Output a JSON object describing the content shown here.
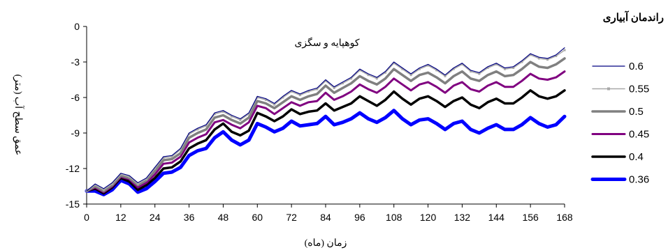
{
  "chart_data": {
    "type": "line",
    "title": "",
    "annotation": "کوهپایه و سگزی",
    "xlabel": "زمان (ماه)",
    "ylabel": "عمق سطح آب (متر)",
    "xlim": [
      0,
      168
    ],
    "ylim": [
      -15,
      0
    ],
    "x_ticks": [
      0,
      12,
      24,
      36,
      48,
      60,
      72,
      84,
      96,
      108,
      120,
      132,
      144,
      156,
      168
    ],
    "y_ticks": [
      0,
      -3,
      -6,
      -9,
      -12,
      -15
    ],
    "grid": false,
    "legend": {
      "title": "راندمان آبیاری",
      "position": "right"
    },
    "x": [
      0,
      3,
      6,
      9,
      12,
      15,
      18,
      21,
      24,
      27,
      30,
      33,
      36,
      39,
      42,
      45,
      48,
      51,
      54,
      57,
      60,
      63,
      66,
      69,
      72,
      75,
      78,
      81,
      84,
      87,
      90,
      93,
      96,
      99,
      102,
      105,
      108,
      111,
      114,
      117,
      120,
      123,
      126,
      129,
      132,
      135,
      138,
      141,
      144,
      147,
      150,
      153,
      156,
      159,
      162,
      165,
      168
    ],
    "series": [
      {
        "name": "0.6",
        "color": "#000080",
        "width": 1.2,
        "values": [
          -13.9,
          -13.3,
          -13.7,
          -13.2,
          -12.4,
          -12.6,
          -13.2,
          -12.8,
          -11.9,
          -11.0,
          -10.9,
          -10.3,
          -9.0,
          -8.6,
          -8.3,
          -7.3,
          -7.1,
          -7.5,
          -7.8,
          -7.3,
          -5.9,
          -6.1,
          -6.5,
          -5.9,
          -5.4,
          -5.7,
          -5.4,
          -5.2,
          -4.5,
          -5.1,
          -4.7,
          -4.3,
          -3.6,
          -4.0,
          -4.3,
          -3.8,
          -3.0,
          -3.5,
          -4.0,
          -3.5,
          -3.2,
          -3.6,
          -4.1,
          -3.5,
          -3.1,
          -3.7,
          -3.9,
          -3.4,
          -3.1,
          -3.5,
          -3.4,
          -2.9,
          -2.3,
          -2.6,
          -2.7,
          -2.4,
          -1.8
        ]
      },
      {
        "name": "0.55",
        "color": "#a8a8a8",
        "width": 1.5,
        "markers": true,
        "values": [
          -13.9,
          -13.4,
          -13.8,
          -13.3,
          -12.5,
          -12.7,
          -13.3,
          -12.9,
          -12.0,
          -11.1,
          -11.0,
          -10.4,
          -9.1,
          -8.7,
          -8.4,
          -7.4,
          -7.2,
          -7.6,
          -7.9,
          -7.4,
          -6.0,
          -6.2,
          -6.6,
          -6.0,
          -5.5,
          -5.8,
          -5.5,
          -5.3,
          -4.6,
          -5.2,
          -4.8,
          -4.4,
          -3.7,
          -4.1,
          -4.4,
          -3.9,
          -3.1,
          -3.6,
          -4.1,
          -3.6,
          -3.3,
          -3.7,
          -4.2,
          -3.6,
          -3.2,
          -3.8,
          -4.0,
          -3.5,
          -3.2,
          -3.6,
          -3.5,
          -3.0,
          -2.4,
          -2.7,
          -2.8,
          -2.5,
          -2.0
        ]
      },
      {
        "name": "0.5",
        "color": "#808080",
        "width": 3.5,
        "values": [
          -13.9,
          -13.5,
          -13.9,
          -13.4,
          -12.6,
          -12.8,
          -13.4,
          -13.0,
          -12.2,
          -11.3,
          -11.2,
          -10.7,
          -9.4,
          -9.0,
          -8.7,
          -7.7,
          -7.5,
          -7.9,
          -8.2,
          -7.7,
          -6.3,
          -6.5,
          -6.9,
          -6.4,
          -5.9,
          -6.2,
          -5.9,
          -5.7,
          -5.0,
          -5.6,
          -5.2,
          -4.8,
          -4.2,
          -4.6,
          -4.9,
          -4.4,
          -3.6,
          -4.1,
          -4.6,
          -4.1,
          -3.9,
          -4.3,
          -4.8,
          -4.2,
          -3.8,
          -4.4,
          -4.6,
          -4.1,
          -3.8,
          -4.2,
          -4.1,
          -3.6,
          -3.0,
          -3.4,
          -3.5,
          -3.2,
          -2.7
        ]
      },
      {
        "name": "0.45",
        "color": "#800080",
        "width": 3,
        "values": [
          -13.9,
          -13.6,
          -14.0,
          -13.5,
          -12.7,
          -12.9,
          -13.6,
          -13.2,
          -12.5,
          -11.6,
          -11.5,
          -11.0,
          -9.8,
          -9.4,
          -9.1,
          -8.1,
          -7.9,
          -8.3,
          -8.6,
          -8.1,
          -6.7,
          -6.9,
          -7.4,
          -6.9,
          -6.4,
          -6.7,
          -6.4,
          -6.3,
          -5.6,
          -6.2,
          -5.9,
          -5.5,
          -4.9,
          -5.3,
          -5.6,
          -5.1,
          -4.4,
          -4.9,
          -5.4,
          -4.9,
          -4.7,
          -5.1,
          -5.6,
          -5.0,
          -4.7,
          -5.3,
          -5.5,
          -5.0,
          -4.7,
          -5.1,
          -5.1,
          -4.6,
          -4.0,
          -4.4,
          -4.5,
          -4.3,
          -3.8
        ]
      },
      {
        "name": "0.4",
        "color": "#000000",
        "width": 3.5,
        "values": [
          -13.9,
          -13.7,
          -14.1,
          -13.6,
          -12.8,
          -13.1,
          -13.8,
          -13.4,
          -12.8,
          -12.0,
          -11.9,
          -11.4,
          -10.3,
          -9.9,
          -9.6,
          -8.7,
          -8.2,
          -8.9,
          -9.2,
          -8.8,
          -7.3,
          -7.6,
          -8.0,
          -7.6,
          -7.0,
          -7.4,
          -7.2,
          -7.1,
          -6.5,
          -7.1,
          -6.8,
          -6.5,
          -5.9,
          -6.3,
          -6.7,
          -6.2,
          -5.5,
          -6.1,
          -6.6,
          -6.1,
          -5.9,
          -6.3,
          -6.8,
          -6.3,
          -6.0,
          -6.6,
          -6.9,
          -6.4,
          -6.1,
          -6.5,
          -6.5,
          -6.0,
          -5.4,
          -5.9,
          -6.1,
          -5.9,
          -5.4
        ]
      },
      {
        "name": "0.36",
        "color": "#0000ff",
        "width": 5,
        "values": [
          -13.9,
          -13.9,
          -14.2,
          -13.8,
          -13.0,
          -13.3,
          -14.0,
          -13.7,
          -13.1,
          -12.4,
          -12.3,
          -11.9,
          -10.9,
          -10.5,
          -10.3,
          -9.4,
          -8.9,
          -9.6,
          -10.0,
          -9.6,
          -8.2,
          -8.5,
          -8.9,
          -8.6,
          -8.0,
          -8.4,
          -8.3,
          -8.2,
          -7.6,
          -8.3,
          -8.1,
          -7.8,
          -7.3,
          -7.8,
          -8.1,
          -7.7,
          -7.1,
          -7.8,
          -8.3,
          -7.9,
          -7.8,
          -8.2,
          -8.7,
          -8.2,
          -8.0,
          -8.7,
          -9.0,
          -8.6,
          -8.3,
          -8.7,
          -8.7,
          -8.3,
          -7.7,
          -8.2,
          -8.5,
          -8.3,
          -7.6
        ]
      }
    ]
  }
}
